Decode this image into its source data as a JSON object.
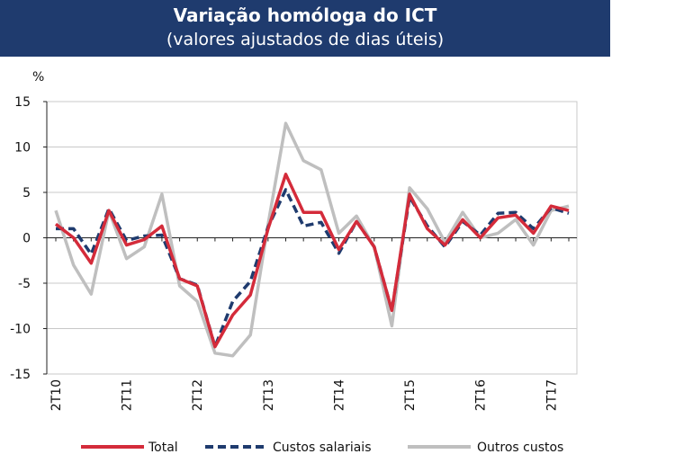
{
  "header": {
    "title": "Variação homóloga do ICT",
    "subtitle": "(valores ajustados de dias úteis)"
  },
  "chart_data": {
    "type": "line",
    "ylabel": "%",
    "ylim": [
      -15,
      15
    ],
    "yticks": [
      15,
      10,
      5,
      0,
      -5,
      -10,
      -15
    ],
    "ytick_labels": [
      "15",
      "10",
      "5",
      "0",
      "-5",
      "-10",
      "-15"
    ],
    "grid": true,
    "legend_position": "bottom",
    "x_labels": [
      {
        "label": "2T10",
        "index": 0
      },
      {
        "label": "2T11",
        "index": 4
      },
      {
        "label": "2T12",
        "index": 8
      },
      {
        "label": "2T13",
        "index": 12
      },
      {
        "label": "2T14",
        "index": 16
      },
      {
        "label": "2T15",
        "index": 20
      },
      {
        "label": "2T16",
        "index": 24
      },
      {
        "label": "2T17",
        "index": 28
      }
    ],
    "n_points": 30,
    "series": [
      {
        "name": "Total",
        "color": "#d42b3a",
        "style": "solid",
        "values": [
          1.5,
          0.0,
          -2.8,
          3.0,
          -0.8,
          -0.2,
          1.3,
          -4.5,
          -5.3,
          -12.0,
          -8.5,
          -6.3,
          1.0,
          7.0,
          2.8,
          2.8,
          -1.3,
          1.8,
          -1.0,
          -8.0,
          4.8,
          1.0,
          -0.8,
          2.0,
          0.0,
          2.2,
          2.5,
          0.5,
          3.5,
          3.0
        ]
      },
      {
        "name": "Custos salariais",
        "color": "#1f3b6e",
        "style": "dashed",
        "values": [
          1.0,
          1.0,
          -1.8,
          3.2,
          -0.3,
          0.2,
          0.3,
          -4.5,
          -5.2,
          -12.0,
          -7.0,
          -4.8,
          1.2,
          5.3,
          1.3,
          1.7,
          -1.7,
          1.8,
          -1.0,
          -8.0,
          4.5,
          1.3,
          -1.0,
          1.8,
          0.3,
          2.7,
          2.8,
          1.0,
          3.3,
          2.7
        ]
      },
      {
        "name": "Outros custos",
        "color": "#bfbfbf",
        "style": "solid",
        "values": [
          3.0,
          -3.0,
          -6.2,
          3.0,
          -2.3,
          -1.0,
          4.8,
          -5.3,
          -7.0,
          -12.7,
          -13.0,
          -10.7,
          1.5,
          12.6,
          8.5,
          7.5,
          0.5,
          2.4,
          -1.0,
          -9.7,
          5.5,
          3.2,
          -0.5,
          2.8,
          0.0,
          0.5,
          2.0,
          -0.8,
          3.0,
          3.5
        ]
      }
    ]
  }
}
